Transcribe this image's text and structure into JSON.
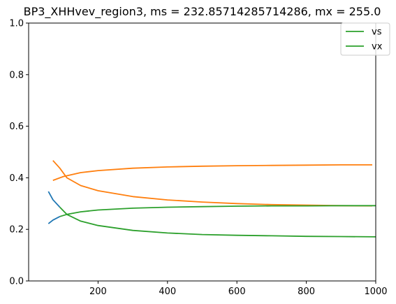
{
  "chart_data": {
    "type": "line",
    "title": "BP3_XHHvev_region3, ms = 232.85714285714286, mx = 255.0",
    "xlabel": "",
    "ylabel": "",
    "xlim": [
      0,
      1000
    ],
    "ylim": [
      0,
      1.0
    ],
    "x_ticks": [
      200,
      400,
      600,
      800,
      1000
    ],
    "x_tick_labels": [
      "200",
      "400",
      "600",
      "800",
      "1000"
    ],
    "y_ticks": [
      0.0,
      0.2,
      0.4,
      0.6,
      0.8,
      1.0
    ],
    "y_tick_labels": [
      "0.0",
      "0.2",
      "0.4",
      "0.6",
      "0.8",
      "1.0"
    ],
    "grid": false,
    "legend_position": "top-right",
    "legend": [
      {
        "label": "vs",
        "color": "#2ca02c"
      },
      {
        "label": "vx",
        "color": "#2ca02c"
      }
    ],
    "series": [
      {
        "color": "#1f77b4",
        "x": [
          57,
          70,
          90
        ],
        "y": [
          0.222,
          0.236,
          0.25
        ]
      },
      {
        "color": "#1f77b4",
        "x": [
          57,
          70,
          90
        ],
        "y": [
          0.347,
          0.315,
          0.286
        ]
      },
      {
        "color": "#ff7f0e",
        "x": [
          70,
          100,
          150,
          200,
          300,
          400,
          500,
          600,
          700,
          800,
          900,
          990
        ],
        "y": [
          0.39,
          0.405,
          0.42,
          0.428,
          0.437,
          0.442,
          0.445,
          0.447,
          0.448,
          0.449,
          0.45,
          0.45
        ]
      },
      {
        "color": "#ff7f0e",
        "x": [
          70,
          90,
          110,
          150,
          200,
          300,
          400,
          500,
          600,
          700,
          800,
          900,
          990
        ],
        "y": [
          0.467,
          0.437,
          0.4,
          0.37,
          0.35,
          0.327,
          0.314,
          0.306,
          0.3,
          0.296,
          0.294,
          0.292,
          0.291
        ]
      },
      {
        "color": "#2ca02c",
        "x": [
          90,
          110,
          150,
          200,
          300,
          400,
          500,
          600,
          700,
          800,
          900,
          1000
        ],
        "y": [
          0.25,
          0.258,
          0.268,
          0.275,
          0.282,
          0.286,
          0.288,
          0.29,
          0.291,
          0.291,
          0.292,
          0.292
        ]
      },
      {
        "color": "#2ca02c",
        "x": [
          90,
          110,
          150,
          200,
          300,
          400,
          500,
          600,
          700,
          800,
          900,
          1000
        ],
        "y": [
          0.286,
          0.258,
          0.232,
          0.215,
          0.196,
          0.186,
          0.18,
          0.177,
          0.175,
          0.173,
          0.172,
          0.171
        ]
      }
    ]
  }
}
